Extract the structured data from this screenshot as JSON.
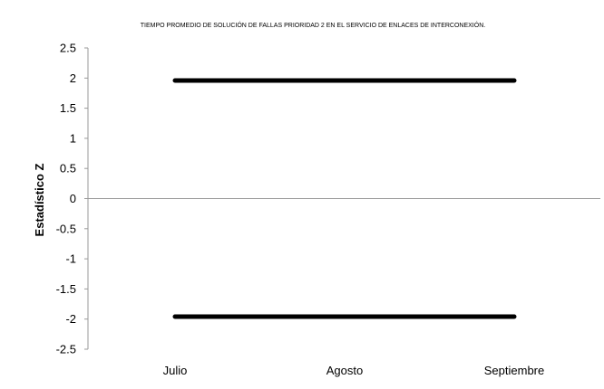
{
  "chart_data": {
    "type": "line",
    "title": "TIEMPO PROMEDIO DE SOLUCIÓN DE FALLAS PRIORIDAD 2 EN EL SERVICIO DE ENLACES DE INTERCONEXIÓN.",
    "xlabel": "",
    "ylabel": "Estadístico Z",
    "categories": [
      "Julio",
      "Agosto",
      "Septiembre"
    ],
    "yticks": [
      "2.5",
      "2",
      "1.5",
      "1",
      "0.5",
      "0",
      "-0.5",
      "-1",
      "-1.5",
      "-2",
      "-2.5"
    ],
    "ylim": [
      -2.5,
      2.5
    ],
    "grid": false,
    "legend": "none",
    "series": [
      {
        "values": [
          1.96,
          1.96,
          1.96
        ],
        "color": "#000000"
      },
      {
        "values": [
          -1.96,
          -1.96,
          -1.96
        ],
        "color": "#000000"
      }
    ]
  }
}
